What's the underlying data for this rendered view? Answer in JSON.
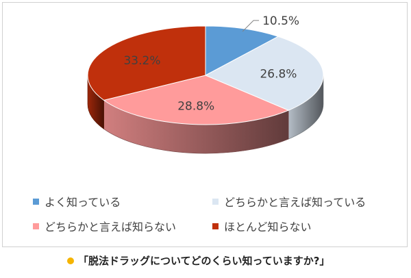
{
  "chart_data": {
    "type": "pie",
    "style": "3d",
    "categories": [
      "よく知っている",
      "どちらかと言えば知っている",
      "どちらかと言えば知らない",
      "ほとんど知らない"
    ],
    "values": [
      10.5,
      26.8,
      28.8,
      33.2
    ],
    "data_labels": [
      "10.5%",
      "26.8%",
      "28.8%",
      "33.2%"
    ],
    "colors": [
      "#5b9bd5",
      "#dbe6f2",
      "#ff9b9b",
      "#c0300c"
    ],
    "legend_position": "bottom"
  },
  "legend": {
    "items": [
      {
        "label": "よく知っている",
        "color": "#5b9bd5"
      },
      {
        "label": "どちらかと言えば知っている",
        "color": "#dbe6f2"
      },
      {
        "label": "どちらかと言えば知らない",
        "color": "#ff9b9b"
      },
      {
        "label": "ほとんど知らない",
        "color": "#c0300c"
      }
    ]
  },
  "question": {
    "text": "「脱法ドラッグについてどのくらい知っていますか?」",
    "bullet_color": "#f5b400"
  }
}
